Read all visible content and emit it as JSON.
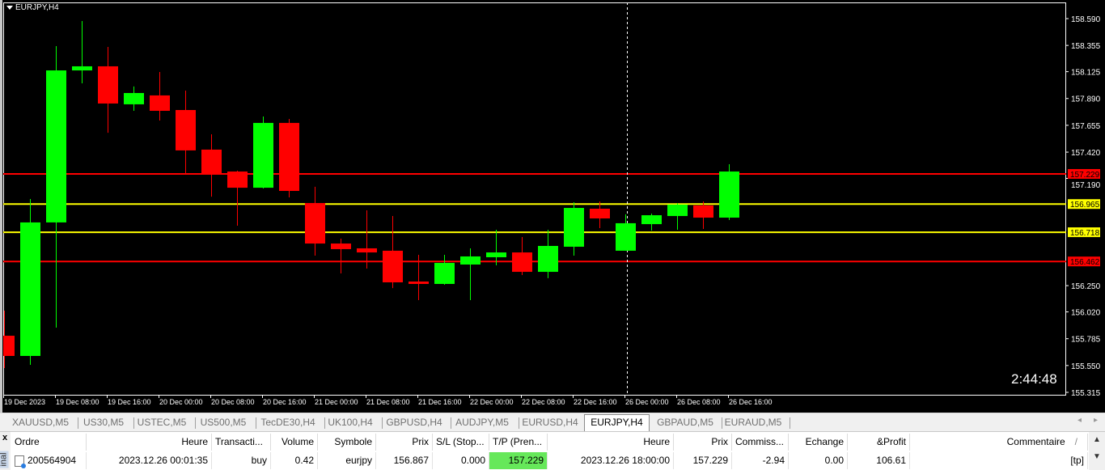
{
  "chart": {
    "title": "EURJPY,H4",
    "timer": "2:44:48",
    "colors": {
      "background": "#000000",
      "bull": "#00ff00",
      "bear": "#ff0000",
      "axis": "#ffffff"
    }
  },
  "chart_data": {
    "type": "candlestick",
    "symbol": "EURJPY",
    "timeframe": "H4",
    "ylim": [
      155.315,
      158.59
    ],
    "y_ticks": [
      "158.590",
      "158.355",
      "158.125",
      "157.890",
      "157.655",
      "157.420",
      "157.190",
      "156.250",
      "156.020",
      "155.785",
      "155.550",
      "155.315"
    ],
    "x_tick_labels": [
      "19 Dec 2023",
      "19 Dec 08:00",
      "19 Dec 16:00",
      "20 Dec 00:00",
      "20 Dec 08:00",
      "20 Dec 16:00",
      "21 Dec 00:00",
      "21 Dec 08:00",
      "21 Dec 16:00",
      "22 Dec 00:00",
      "22 Dec 08:00",
      "22 Dec 16:00",
      "26 Dec 00:00",
      "26 Dec 08:00",
      "26 Dec 16:00"
    ],
    "candles": [
      {
        "o": 155.811,
        "h": 156.031,
        "l": 155.528,
        "c": 155.634
      },
      {
        "o": 155.634,
        "h": 157.009,
        "l": 155.556,
        "c": 156.804
      },
      {
        "o": 156.804,
        "h": 158.349,
        "l": 155.882,
        "c": 158.136
      },
      {
        "o": 158.136,
        "h": 158.569,
        "l": 158.023,
        "c": 158.172
      },
      {
        "o": 158.172,
        "h": 158.342,
        "l": 157.59,
        "c": 157.846
      },
      {
        "o": 157.839,
        "h": 157.995,
        "l": 157.782,
        "c": 157.938
      },
      {
        "o": 157.917,
        "h": 158.122,
        "l": 157.697,
        "c": 157.782
      },
      {
        "o": 157.789,
        "h": 157.959,
        "l": 157.236,
        "c": 157.435
      },
      {
        "o": 157.442,
        "h": 157.576,
        "l": 157.03,
        "c": 157.229
      },
      {
        "o": 157.25,
        "h": 157.257,
        "l": 156.775,
        "c": 157.108
      },
      {
        "o": 157.108,
        "h": 157.732,
        "l": 157.101,
        "c": 157.676
      },
      {
        "o": 157.676,
        "h": 157.711,
        "l": 157.023,
        "c": 157.08
      },
      {
        "o": 156.974,
        "h": 157.116,
        "l": 156.513,
        "c": 156.619
      },
      {
        "o": 156.619,
        "h": 156.662,
        "l": 156.357,
        "c": 156.57
      },
      {
        "o": 156.577,
        "h": 156.91,
        "l": 156.4,
        "c": 156.541
      },
      {
        "o": 156.556,
        "h": 156.86,
        "l": 156.229,
        "c": 156.279
      },
      {
        "o": 156.286,
        "h": 156.52,
        "l": 156.123,
        "c": 156.265
      },
      {
        "o": 156.265,
        "h": 156.52,
        "l": 156.258,
        "c": 156.449
      },
      {
        "o": 156.435,
        "h": 156.577,
        "l": 156.123,
        "c": 156.506
      },
      {
        "o": 156.499,
        "h": 156.74,
        "l": 156.428,
        "c": 156.541
      },
      {
        "o": 156.541,
        "h": 156.676,
        "l": 156.343,
        "c": 156.371
      },
      {
        "o": 156.371,
        "h": 156.74,
        "l": 156.315,
        "c": 156.598
      },
      {
        "o": 156.591,
        "h": 156.981,
        "l": 156.513,
        "c": 156.931
      },
      {
        "o": 156.924,
        "h": 156.988,
        "l": 156.754,
        "c": 156.839
      },
      {
        "o": 156.556,
        "h": 156.875,
        "l": 156.556,
        "c": 156.797
      },
      {
        "o": 156.789,
        "h": 156.882,
        "l": 156.733,
        "c": 156.867
      },
      {
        "o": 156.86,
        "h": 156.974,
        "l": 156.74,
        "c": 156.96
      },
      {
        "o": 156.953,
        "h": 156.988,
        "l": 156.747,
        "c": 156.846
      },
      {
        "o": 156.846,
        "h": 157.314,
        "l": 156.825,
        "c": 157.25
      }
    ],
    "hlines": [
      {
        "price": "157.229",
        "color": "#ff0000"
      },
      {
        "price": "156.965",
        "color": "#ffff00"
      },
      {
        "price": "156.718",
        "color": "#ffff00"
      },
      {
        "price": "156.462",
        "color": "#ff0000"
      }
    ],
    "crosshair_candle_index": 24
  },
  "tabs": {
    "items": [
      "XAUUSD,M5",
      "US30,M5",
      "USTEC,M5",
      "US500,M5",
      "TecDE30,H4",
      "UK100,H4",
      "GBPUSD,H4",
      "AUDJPY,M5",
      "EURUSD,H4",
      "EURJPY,H4",
      "GBPAUD,M5",
      "EURAUD,M5"
    ],
    "active": "EURJPY,H4",
    "prev_arrow": "◂",
    "next_arrow": "▸"
  },
  "terminal": {
    "close": "x",
    "label": "inal",
    "columns": [
      "Ordre",
      "Heure",
      "Transacti...",
      "Volume",
      "Symbole",
      "Prix",
      "S/L (Stop...",
      "T/P (Pren...",
      "Heure",
      "Prix",
      "Commiss...",
      "Echange",
      "&Profit",
      "Commentaire"
    ],
    "sort_indicator": "/",
    "rows": [
      [
        "200564904",
        "2023.12.26 00:01:35",
        "buy",
        "0.42",
        "eurjpy",
        "156.867",
        "0.000",
        "157.229",
        "2023.12.26 18:00:00",
        "157.229",
        "-2.94",
        "0.00",
        "106.61",
        "[tp]"
      ]
    ],
    "tp_highlight": "#66e85a",
    "scroll_up": "▲",
    "scroll_down": "▼"
  }
}
